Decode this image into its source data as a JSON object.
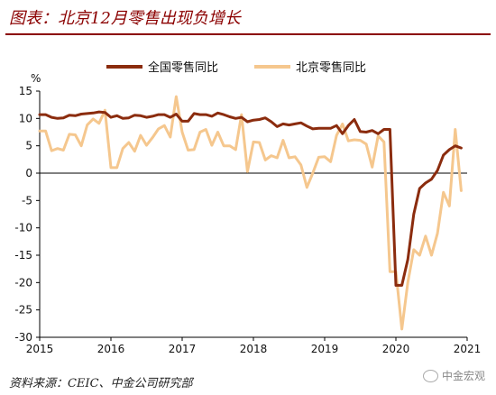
{
  "header": {
    "title": "图表：北京12月零售出现负增长"
  },
  "footer": {
    "source": "资料来源：CEIC、中金公司研究部",
    "watermark": "中金宏观"
  },
  "chart_data": {
    "type": "line",
    "title": "图表：北京12月零售出现负增长",
    "ylabel": "%",
    "ylim": [
      -30,
      15
    ],
    "yticks": [
      15,
      10,
      5,
      0,
      -5,
      -10,
      -15,
      -20,
      -25,
      -30
    ],
    "xlim": [
      2015,
      2021
    ],
    "xticks": [
      "2015",
      "2016",
      "2017",
      "2018",
      "2019",
      "2020",
      "2021"
    ],
    "legend_position": "top",
    "series": [
      {
        "name": "全国零售同比",
        "color": "#8b2c0e",
        "x": [
          2015.0,
          2015.083,
          2015.167,
          2015.25,
          2015.333,
          2015.417,
          2015.5,
          2015.583,
          2015.667,
          2015.75,
          2015.833,
          2015.917,
          2016.0,
          2016.083,
          2016.167,
          2016.25,
          2016.333,
          2016.417,
          2016.5,
          2016.583,
          2016.667,
          2016.75,
          2016.833,
          2016.917,
          2017.0,
          2017.083,
          2017.167,
          2017.25,
          2017.333,
          2017.417,
          2017.5,
          2017.583,
          2017.667,
          2017.75,
          2017.833,
          2017.917,
          2018.0,
          2018.083,
          2018.167,
          2018.25,
          2018.333,
          2018.417,
          2018.5,
          2018.583,
          2018.667,
          2018.75,
          2018.833,
          2018.917,
          2019.0,
          2019.083,
          2019.167,
          2019.25,
          2019.333,
          2019.417,
          2019.5,
          2019.583,
          2019.667,
          2019.75,
          2019.833,
          2019.917,
          2020.0,
          2020.083,
          2020.167,
          2020.25,
          2020.333,
          2020.417,
          2020.5,
          2020.583,
          2020.667,
          2020.75,
          2020.833,
          2020.917
        ],
        "y": [
          10.7,
          10.7,
          10.2,
          10.0,
          10.1,
          10.6,
          10.5,
          10.8,
          10.9,
          11.0,
          11.2,
          11.1,
          10.2,
          10.5,
          10.0,
          10.1,
          10.6,
          10.5,
          10.2,
          10.4,
          10.7,
          10.7,
          10.2,
          10.8,
          9.5,
          9.5,
          10.9,
          10.7,
          10.7,
          10.4,
          11.0,
          10.7,
          10.3,
          10.0,
          10.2,
          9.4,
          9.7,
          9.8,
          10.1,
          9.4,
          8.5,
          9.0,
          8.8,
          9.0,
          9.2,
          8.6,
          8.1,
          8.2,
          8.2,
          8.2,
          8.7,
          7.2,
          8.7,
          9.8,
          7.6,
          7.5,
          7.8,
          7.2,
          8.0,
          8.0,
          -20.5,
          -20.5,
          -15.8,
          -7.5,
          -2.8,
          -1.8,
          -1.1,
          0.5,
          3.3,
          4.3,
          5.0,
          4.6
        ]
      },
      {
        "name": "北京零售同比",
        "color": "#f5c78e",
        "x": [
          2015.0,
          2015.083,
          2015.167,
          2015.25,
          2015.333,
          2015.417,
          2015.5,
          2015.583,
          2015.667,
          2015.75,
          2015.833,
          2015.917,
          2016.0,
          2016.083,
          2016.167,
          2016.25,
          2016.333,
          2016.417,
          2016.5,
          2016.583,
          2016.667,
          2016.75,
          2016.833,
          2016.917,
          2017.0,
          2017.083,
          2017.167,
          2017.25,
          2017.333,
          2017.417,
          2017.5,
          2017.583,
          2017.667,
          2017.75,
          2017.833,
          2017.917,
          2018.0,
          2018.083,
          2018.167,
          2018.25,
          2018.333,
          2018.417,
          2018.5,
          2018.583,
          2018.667,
          2018.75,
          2018.833,
          2018.917,
          2019.0,
          2019.083,
          2019.167,
          2019.25,
          2019.333,
          2019.417,
          2019.5,
          2019.583,
          2019.667,
          2019.75,
          2019.833,
          2019.917,
          2020.0,
          2020.083,
          2020.167,
          2020.25,
          2020.333,
          2020.417,
          2020.5,
          2020.583,
          2020.667,
          2020.75,
          2020.833,
          2020.917
        ],
        "y": [
          7.7,
          7.7,
          4.1,
          4.5,
          4.2,
          7.1,
          7.0,
          5.0,
          8.8,
          9.9,
          9.1,
          11.5,
          1.0,
          1.0,
          4.5,
          5.6,
          4.0,
          6.9,
          5.1,
          6.5,
          8.1,
          8.7,
          6.6,
          14.0,
          7.5,
          4.2,
          4.3,
          7.5,
          8.0,
          5.1,
          7.5,
          5.0,
          5.0,
          4.3,
          10.7,
          0.3,
          5.7,
          5.6,
          2.4,
          3.2,
          2.8,
          6.0,
          2.8,
          3.0,
          1.5,
          -2.6,
          0.0,
          2.9,
          3.0,
          2.1,
          6.9,
          9.0,
          5.9,
          6.1,
          6.0,
          5.3,
          1.1,
          6.8,
          5.7,
          -18.0,
          -18.0,
          -28.5,
          -20.0,
          -14.0,
          -15.0,
          -11.5,
          -15.0,
          -11.0,
          -3.5,
          -6.0,
          8.0,
          -3.2
        ]
      }
    ]
  }
}
